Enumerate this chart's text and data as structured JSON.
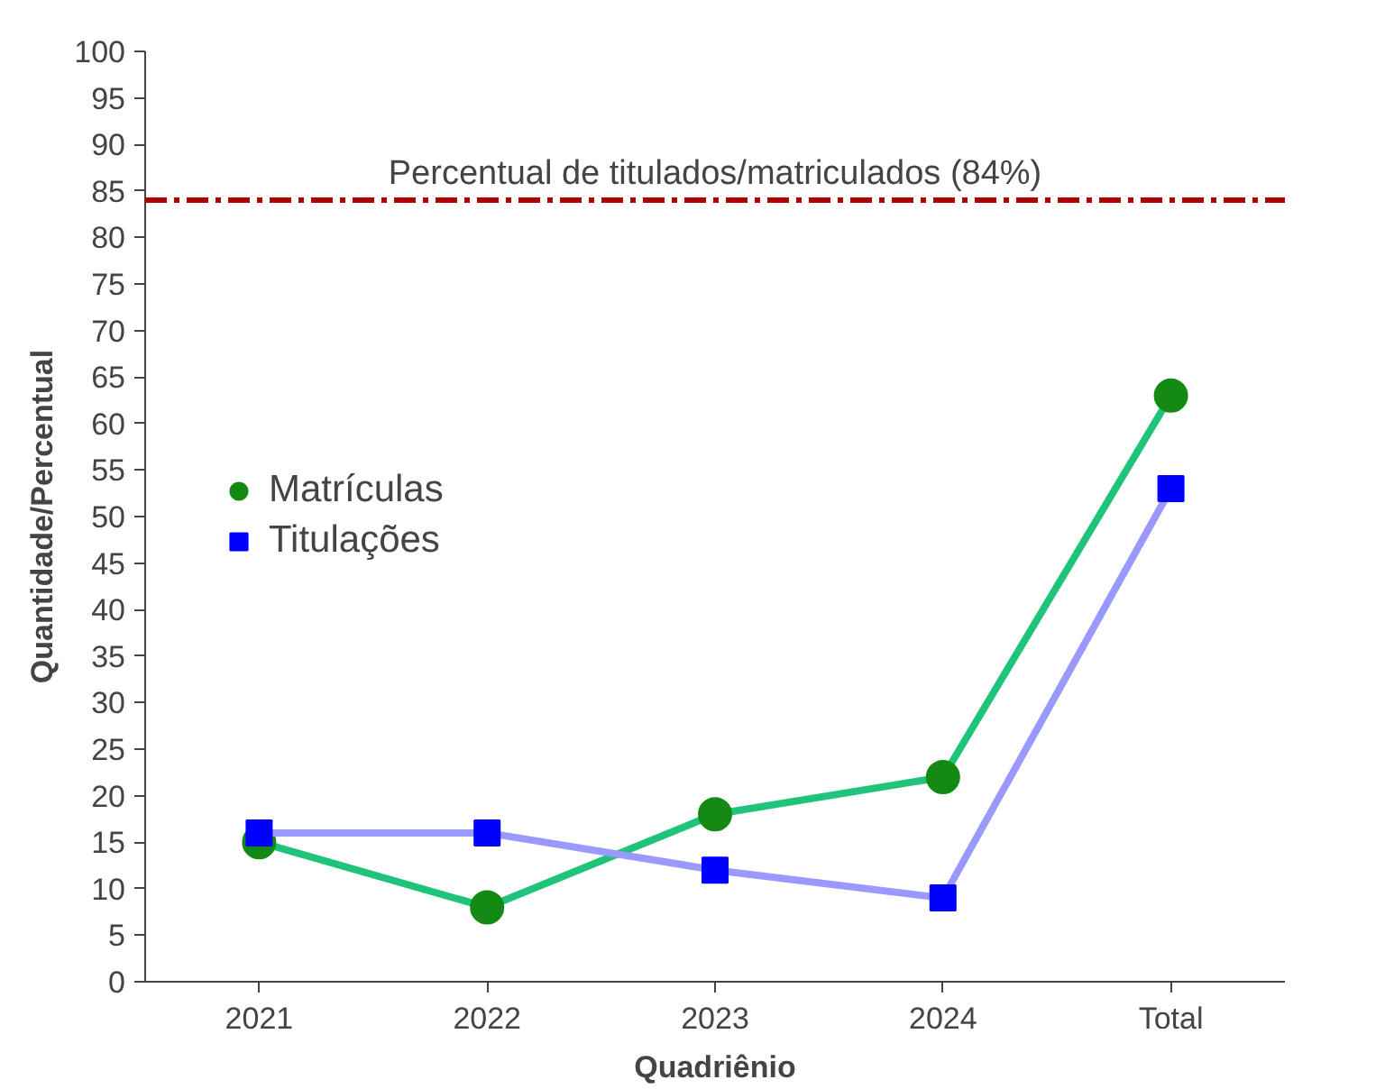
{
  "chart_data": {
    "type": "line",
    "xlabel": "Quadriênio",
    "ylabel": "Quantidade/Percentual",
    "categories": [
      "2021",
      "2022",
      "2023",
      "2024",
      "Total"
    ],
    "series": [
      {
        "name": "Matrículas",
        "color": "#1fc47a",
        "colors": [
          "#138a13",
          "#138a13",
          "#138a13",
          "#138a13",
          "#138a13"
        ],
        "marker": "circle",
        "values": [
          15,
          8,
          18,
          22,
          63
        ]
      },
      {
        "name": "Titulações",
        "color": "#9999ff",
        "colors": [
          "#0000ff",
          "#0000ff",
          "#0000ff",
          "#0000ff",
          "#0000ff"
        ],
        "marker": "square",
        "values": [
          16,
          16,
          12,
          9,
          53
        ]
      }
    ],
    "ylim": [
      0,
      100
    ],
    "yticks": [
      0,
      5,
      10,
      15,
      20,
      25,
      30,
      35,
      40,
      45,
      50,
      55,
      60,
      65,
      70,
      75,
      80,
      85,
      90,
      95,
      100
    ],
    "ref_lines": [
      {
        "axis": "y",
        "value": 84,
        "label": "Percentual de titulados/matriculados (84%)",
        "color": "#b00000",
        "line_style": "dashdot"
      }
    ],
    "grid": false,
    "legend": "left",
    "line_style": "solid"
  }
}
